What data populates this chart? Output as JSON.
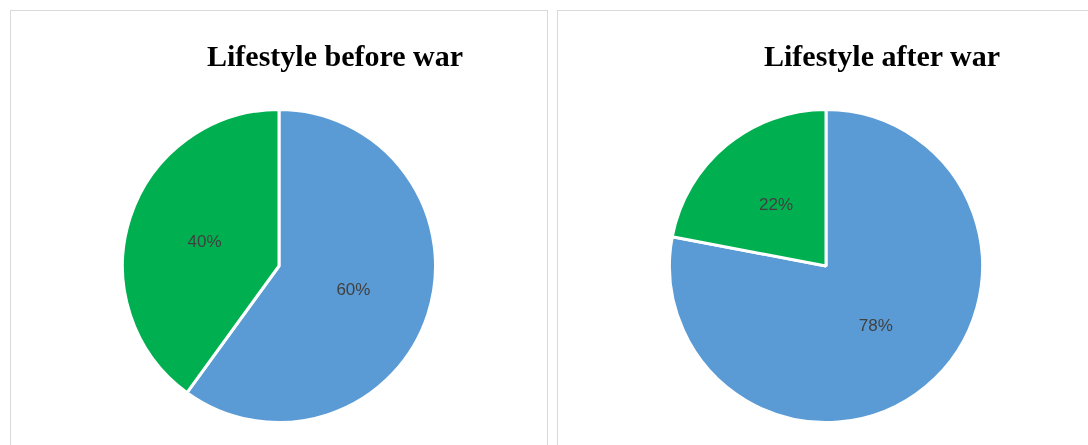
{
  "chart_data": [
    {
      "type": "pie",
      "title": "Lifestyle before war",
      "categories": [
        null,
        null
      ],
      "values": [
        60,
        40
      ],
      "colors": [
        "#5b9bd5",
        "#00b050"
      ],
      "value_labels": [
        "60%",
        "40%"
      ],
      "legend": false
    },
    {
      "type": "pie",
      "title": "Lifestyle after war",
      "categories": [
        null,
        null
      ],
      "values": [
        78,
        22
      ],
      "colors": [
        "#5b9bd5",
        "#00b050"
      ],
      "value_labels": [
        "78%",
        "22%"
      ],
      "legend": false
    }
  ]
}
